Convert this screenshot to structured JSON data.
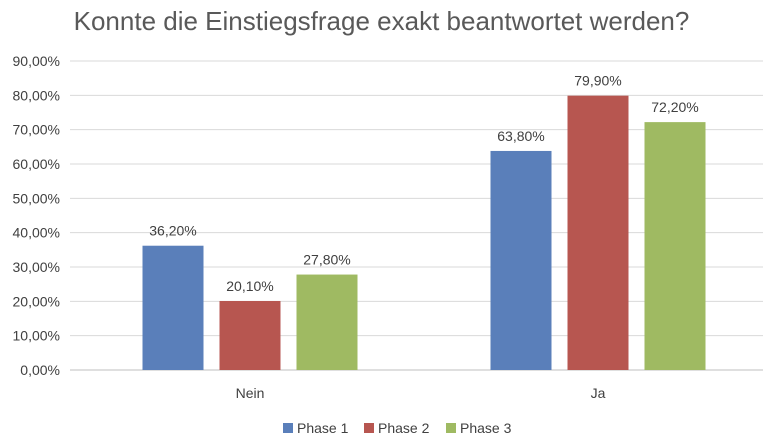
{
  "chart_data": {
    "type": "bar",
    "title": "Konnte die Einstiegsfrage exakt beantwortet werden?",
    "categories": [
      "Nein",
      "Ja"
    ],
    "series": [
      {
        "name": "Phase 1",
        "values": [
          36.2,
          63.8
        ],
        "labels": [
          "36,20%",
          "63,80%"
        ],
        "color": "#5a7fba"
      },
      {
        "name": "Phase 2",
        "values": [
          20.1,
          79.9
        ],
        "labels": [
          "20,10%",
          "79,90%"
        ],
        "color": "#b75650"
      },
      {
        "name": "Phase 3",
        "values": [
          27.8,
          72.2
        ],
        "labels": [
          "27,80%",
          "72,20%"
        ],
        "color": "#9fba62"
      }
    ],
    "ylim": [
      0,
      90
    ],
    "yticks": [
      0,
      10,
      20,
      30,
      40,
      50,
      60,
      70,
      80,
      90
    ],
    "ytick_labels": [
      "0,00%",
      "10,00%",
      "20,00%",
      "30,00%",
      "40,00%",
      "50,00%",
      "60,00%",
      "70,00%",
      "80,00%",
      "90,00%"
    ],
    "grid": true,
    "legend_position": "bottom"
  }
}
